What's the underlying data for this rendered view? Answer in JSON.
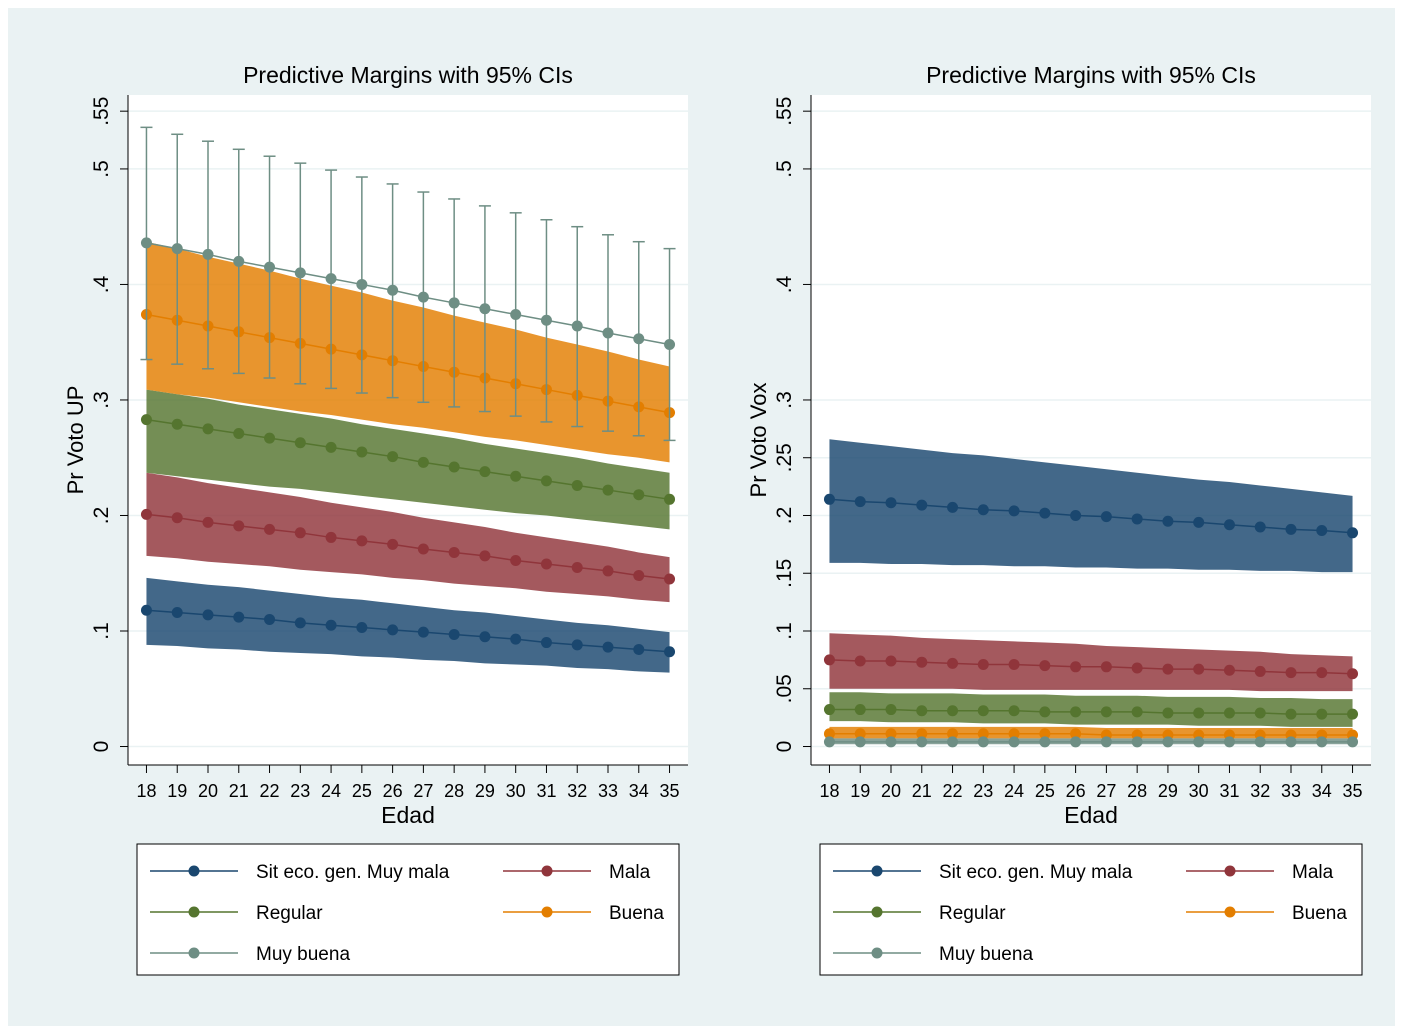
{
  "chart_data": [
    {
      "type": "line",
      "title": "Predictive Margins with 95% CIs",
      "y_label": "Pr Voto UP",
      "x_label": "Edad",
      "x": [
        18,
        19,
        20,
        21,
        22,
        23,
        24,
        25,
        26,
        27,
        28,
        29,
        30,
        31,
        32,
        33,
        34,
        35
      ],
      "xticks": [
        18,
        19,
        20,
        21,
        22,
        23,
        24,
        25,
        26,
        27,
        28,
        29,
        30,
        31,
        32,
        33,
        34,
        35
      ],
      "xlim": [
        17.4,
        35.6
      ],
      "ylim": [
        -0.016,
        0.564
      ],
      "yticks": [
        0,
        {
          "value": 0.1,
          "label": ".1"
        },
        {
          "value": 0.2,
          "label": ".2"
        },
        {
          "value": 0.3,
          "label": ".3"
        },
        {
          "value": 0.4,
          "label": ".4"
        },
        {
          "value": 0.5,
          "label": ".5"
        },
        {
          "value": 0.55,
          "label": ".55"
        }
      ],
      "grid": true,
      "legend_position": "bottom",
      "series": [
        {
          "name": "Sit eco. gen. Muy mala",
          "color": "#1a476f",
          "ci_style": "area",
          "values": [
            0.118,
            0.116,
            0.114,
            0.112,
            0.11,
            0.107,
            0.105,
            0.103,
            0.101,
            0.099,
            0.097,
            0.095,
            0.093,
            0.09,
            0.088,
            0.086,
            0.084,
            0.082
          ],
          "lower": [
            0.088,
            0.087,
            0.085,
            0.084,
            0.082,
            0.081,
            0.08,
            0.078,
            0.077,
            0.075,
            0.074,
            0.072,
            0.071,
            0.07,
            0.068,
            0.067,
            0.065,
            0.064
          ],
          "upper": [
            0.146,
            0.143,
            0.14,
            0.138,
            0.135,
            0.132,
            0.129,
            0.127,
            0.124,
            0.121,
            0.118,
            0.116,
            0.113,
            0.11,
            0.107,
            0.105,
            0.102,
            0.099
          ]
        },
        {
          "name": "Mala",
          "color": "#90353b",
          "ci_style": "area",
          "values": [
            0.201,
            0.198,
            0.194,
            0.191,
            0.188,
            0.185,
            0.181,
            0.178,
            0.175,
            0.171,
            0.168,
            0.165,
            0.161,
            0.158,
            0.155,
            0.152,
            0.148,
            0.145
          ],
          "lower": [
            0.165,
            0.163,
            0.16,
            0.158,
            0.156,
            0.153,
            0.151,
            0.149,
            0.146,
            0.144,
            0.141,
            0.139,
            0.137,
            0.134,
            0.132,
            0.13,
            0.127,
            0.125
          ],
          "upper": [
            0.237,
            0.233,
            0.228,
            0.224,
            0.22,
            0.216,
            0.211,
            0.207,
            0.203,
            0.198,
            0.194,
            0.19,
            0.185,
            0.181,
            0.177,
            0.173,
            0.168,
            0.164
          ]
        },
        {
          "name": "Regular",
          "color": "#55752f",
          "ci_style": "area",
          "values": [
            0.283,
            0.279,
            0.275,
            0.271,
            0.267,
            0.263,
            0.259,
            0.255,
            0.251,
            0.246,
            0.242,
            0.238,
            0.234,
            0.23,
            0.226,
            0.222,
            0.218,
            0.214
          ],
          "lower": [
            0.237,
            0.234,
            0.231,
            0.228,
            0.225,
            0.223,
            0.22,
            0.217,
            0.214,
            0.211,
            0.208,
            0.205,
            0.202,
            0.2,
            0.197,
            0.194,
            0.191,
            0.188
          ],
          "upper": [
            0.309,
            0.305,
            0.301,
            0.296,
            0.292,
            0.288,
            0.284,
            0.279,
            0.275,
            0.271,
            0.267,
            0.262,
            0.258,
            0.254,
            0.25,
            0.245,
            0.241,
            0.237
          ]
        },
        {
          "name": "Buena",
          "color": "#e37e00",
          "ci_style": "area",
          "values": [
            0.374,
            0.369,
            0.364,
            0.359,
            0.354,
            0.349,
            0.344,
            0.339,
            0.334,
            0.329,
            0.324,
            0.319,
            0.314,
            0.309,
            0.304,
            0.299,
            0.294,
            0.289
          ],
          "lower": [
            0.309,
            0.305,
            0.302,
            0.298,
            0.294,
            0.29,
            0.287,
            0.283,
            0.279,
            0.276,
            0.272,
            0.268,
            0.265,
            0.261,
            0.257,
            0.253,
            0.25,
            0.246
          ],
          "upper": [
            0.437,
            0.431,
            0.424,
            0.418,
            0.412,
            0.405,
            0.399,
            0.393,
            0.386,
            0.38,
            0.373,
            0.367,
            0.361,
            0.354,
            0.348,
            0.342,
            0.335,
            0.329
          ]
        },
        {
          "name": "Muy buena",
          "color": "#6e8e84",
          "ci_style": "bar",
          "values": [
            0.436,
            0.431,
            0.426,
            0.42,
            0.415,
            0.41,
            0.405,
            0.4,
            0.395,
            0.389,
            0.384,
            0.379,
            0.374,
            0.369,
            0.364,
            0.358,
            0.353,
            0.348
          ],
          "lower": [
            0.335,
            0.331,
            0.327,
            0.323,
            0.319,
            0.314,
            0.31,
            0.306,
            0.302,
            0.298,
            0.294,
            0.29,
            0.286,
            0.281,
            0.277,
            0.273,
            0.269,
            0.265
          ],
          "upper": [
            0.536,
            0.53,
            0.524,
            0.517,
            0.511,
            0.505,
            0.499,
            0.493,
            0.487,
            0.48,
            0.474,
            0.468,
            0.462,
            0.456,
            0.45,
            0.443,
            0.437,
            0.431
          ]
        }
      ]
    },
    {
      "type": "line",
      "title": "Predictive Margins with 95% CIs",
      "y_label": "Pr Voto Vox",
      "x_label": "Edad",
      "x": [
        18,
        19,
        20,
        21,
        22,
        23,
        24,
        25,
        26,
        27,
        28,
        29,
        30,
        31,
        32,
        33,
        34,
        35
      ],
      "xticks": [
        18,
        19,
        20,
        21,
        22,
        23,
        24,
        25,
        26,
        27,
        28,
        29,
        30,
        31,
        32,
        33,
        34,
        35
      ],
      "xlim": [
        17.4,
        35.6
      ],
      "ylim": [
        -0.016,
        0.564
      ],
      "yticks": [
        0,
        {
          "value": 0.05,
          "label": ".05"
        },
        {
          "value": 0.1,
          "label": ".1"
        },
        {
          "value": 0.15,
          "label": ".15"
        },
        {
          "value": 0.2,
          "label": ".2"
        },
        {
          "value": 0.25,
          "label": ".25"
        },
        {
          "value": 0.3,
          "label": ".3"
        },
        {
          "value": 0.4,
          "label": ".4"
        },
        {
          "value": 0.5,
          "label": ".5"
        },
        {
          "value": 0.55,
          "label": ".55"
        }
      ],
      "grid": true,
      "legend_position": "bottom",
      "series": [
        {
          "name": "Sit eco. gen. Muy mala",
          "color": "#1a476f",
          "ci_style": "area",
          "values": [
            0.214,
            0.212,
            0.211,
            0.209,
            0.207,
            0.205,
            0.204,
            0.202,
            0.2,
            0.199,
            0.197,
            0.195,
            0.194,
            0.192,
            0.19,
            0.188,
            0.187,
            0.185
          ],
          "lower": [
            0.159,
            0.159,
            0.158,
            0.158,
            0.157,
            0.157,
            0.156,
            0.156,
            0.155,
            0.155,
            0.154,
            0.154,
            0.153,
            0.153,
            0.152,
            0.152,
            0.151,
            0.151
          ],
          "upper": [
            0.266,
            0.263,
            0.26,
            0.257,
            0.254,
            0.252,
            0.249,
            0.246,
            0.243,
            0.24,
            0.237,
            0.234,
            0.231,
            0.229,
            0.226,
            0.223,
            0.22,
            0.217
          ]
        },
        {
          "name": "Mala",
          "color": "#90353b",
          "ci_style": "area",
          "values": [
            0.075,
            0.074,
            0.074,
            0.073,
            0.072,
            0.071,
            0.071,
            0.07,
            0.069,
            0.069,
            0.068,
            0.067,
            0.067,
            0.066,
            0.065,
            0.064,
            0.064,
            0.063
          ],
          "lower": [
            0.05,
            0.05,
            0.05,
            0.05,
            0.05,
            0.049,
            0.049,
            0.049,
            0.049,
            0.049,
            0.049,
            0.049,
            0.049,
            0.049,
            0.048,
            0.048,
            0.048,
            0.048
          ],
          "upper": [
            0.098,
            0.097,
            0.096,
            0.094,
            0.093,
            0.092,
            0.091,
            0.09,
            0.089,
            0.087,
            0.086,
            0.085,
            0.084,
            0.083,
            0.082,
            0.08,
            0.079,
            0.078
          ]
        },
        {
          "name": "Regular",
          "color": "#55752f",
          "ci_style": "area",
          "values": [
            0.032,
            0.032,
            0.032,
            0.031,
            0.031,
            0.031,
            0.031,
            0.03,
            0.03,
            0.03,
            0.03,
            0.029,
            0.029,
            0.029,
            0.029,
            0.028,
            0.028,
            0.028
          ],
          "lower": [
            0.022,
            0.022,
            0.021,
            0.021,
            0.021,
            0.02,
            0.02,
            0.02,
            0.019,
            0.019,
            0.019,
            0.019,
            0.018,
            0.018,
            0.018,
            0.017,
            0.017,
            0.017
          ],
          "upper": [
            0.047,
            0.047,
            0.046,
            0.046,
            0.046,
            0.045,
            0.045,
            0.045,
            0.044,
            0.044,
            0.044,
            0.043,
            0.043,
            0.043,
            0.042,
            0.042,
            0.041,
            0.041
          ]
        },
        {
          "name": "Buena",
          "color": "#e37e00",
          "ci_style": "area",
          "values": [
            0.011,
            0.011,
            0.011,
            0.011,
            0.011,
            0.011,
            0.011,
            0.011,
            0.011,
            0.01,
            0.01,
            0.01,
            0.01,
            0.01,
            0.01,
            0.01,
            0.01,
            0.01
          ],
          "lower": [
            0.007,
            0.007,
            0.007,
            0.007,
            0.007,
            0.007,
            0.007,
            0.007,
            0.007,
            0.007,
            0.007,
            0.007,
            0.007,
            0.007,
            0.007,
            0.007,
            0.007,
            0.007
          ],
          "upper": [
            0.017,
            0.017,
            0.017,
            0.017,
            0.017,
            0.017,
            0.017,
            0.017,
            0.017,
            0.016,
            0.016,
            0.016,
            0.016,
            0.016,
            0.016,
            0.016,
            0.016,
            0.016
          ]
        },
        {
          "name": "Muy buena",
          "color": "#6e8e84",
          "ci_style": "area",
          "values": [
            0.004,
            0.004,
            0.004,
            0.004,
            0.004,
            0.004,
            0.004,
            0.004,
            0.004,
            0.004,
            0.004,
            0.004,
            0.004,
            0.004,
            0.004,
            0.004,
            0.004,
            0.004
          ],
          "lower": [
            0.002,
            0.002,
            0.002,
            0.002,
            0.002,
            0.002,
            0.002,
            0.002,
            0.002,
            0.002,
            0.002,
            0.002,
            0.002,
            0.002,
            0.002,
            0.002,
            0.002,
            0.002
          ],
          "upper": [
            0.007,
            0.007,
            0.007,
            0.007,
            0.007,
            0.007,
            0.007,
            0.007,
            0.007,
            0.007,
            0.007,
            0.007,
            0.007,
            0.007,
            0.007,
            0.007,
            0.007,
            0.007
          ]
        }
      ]
    }
  ]
}
